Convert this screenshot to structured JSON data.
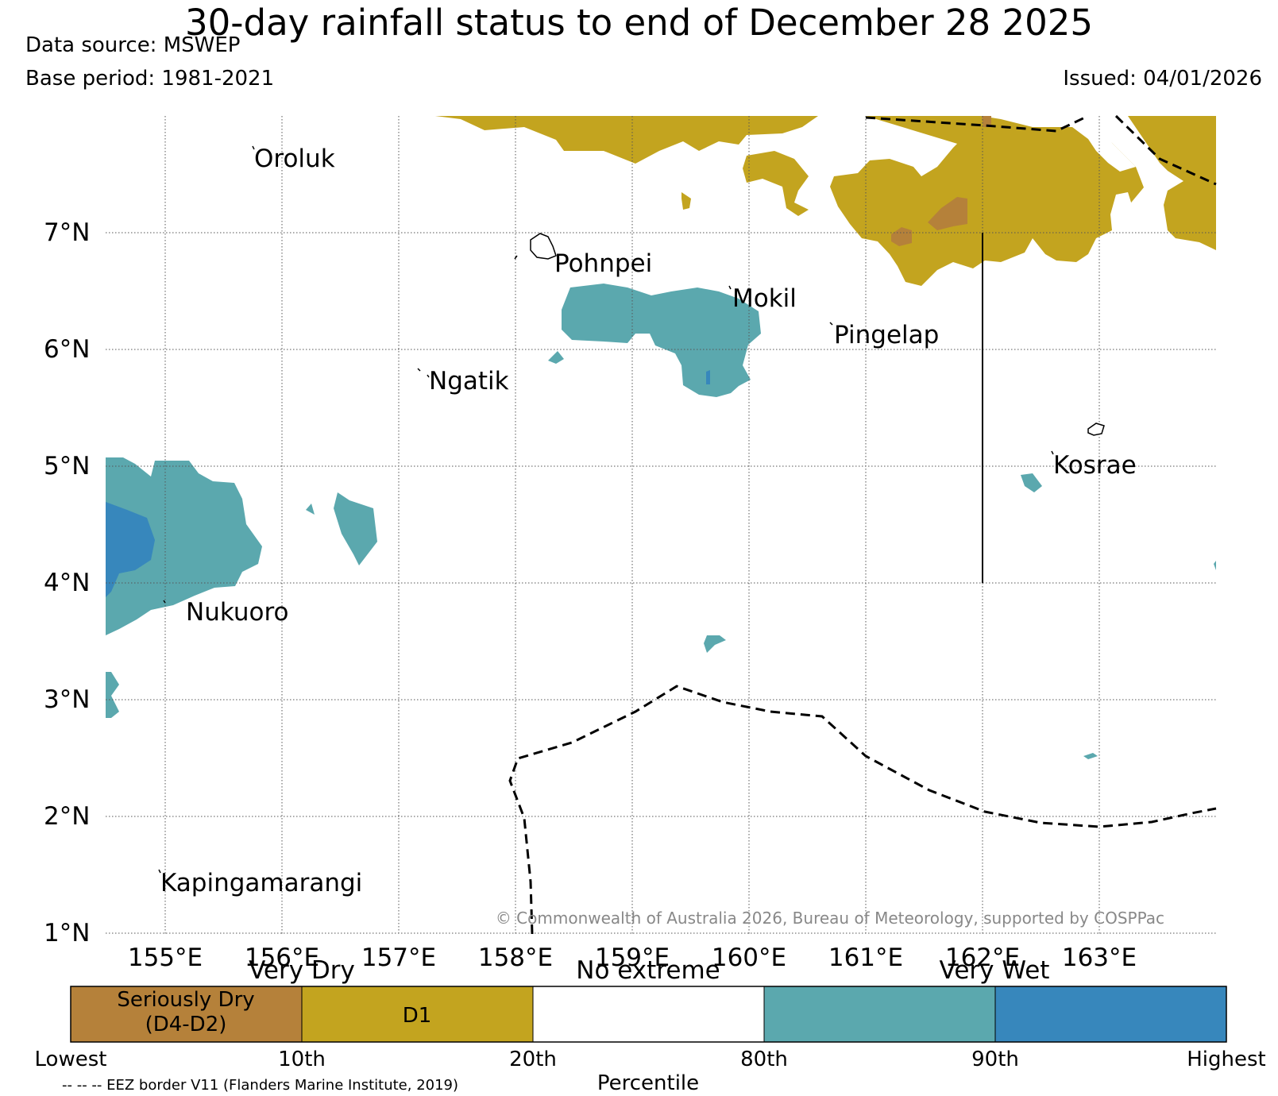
{
  "header": {
    "title": "30-day rainfall status to end of December 28 2025",
    "data_source": "Data source: MSWEP",
    "base_period": "Base period: 1981-2021",
    "issued": "Issued: 04/01/2026"
  },
  "map": {
    "lon_labels": [
      "155°E",
      "156°E",
      "157°E",
      "158°E",
      "159°E",
      "160°E",
      "161°E",
      "162°E",
      "163°E"
    ],
    "lat_labels": [
      "7°N",
      "6°N",
      "5°N",
      "4°N",
      "3°N",
      "2°N",
      "1°N"
    ],
    "islands": [
      "Oroluk",
      "Pohnpei",
      "Mokil",
      "Pingelap",
      "Ngatik",
      "Kosrae",
      "Nukuoro",
      "Kapingamarangi"
    ],
    "copyright": "© Commonwealth of Australia 2026, Bureau of Meteorology, supported by COSPPac"
  },
  "colors": {
    "seriously_dry": "#b5813a",
    "d1": "#c3a41f",
    "no_extreme": "#ffffff",
    "very_wet_80": "#5ba8ae",
    "very_wet_90": "#3787bc"
  },
  "legend": {
    "groups": [
      "Very Dry",
      "No extreme",
      "Very Wet"
    ],
    "boxes": [
      "Seriously Dry",
      "(D4-D2)",
      "D1"
    ],
    "percentiles": [
      "Lowest",
      "10th",
      "20th",
      "80th",
      "90th",
      "Highest"
    ],
    "axis_title": "Percentile",
    "eez_note": "-- -- -- EEZ border V11 (Flanders Marine Institute, 2019)"
  }
}
